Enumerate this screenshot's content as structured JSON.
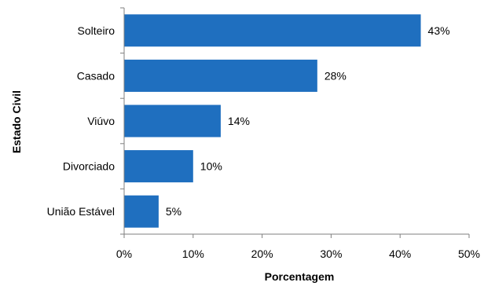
{
  "chart_data": {
    "type": "bar",
    "orientation": "horizontal",
    "categories": [
      "Solteiro",
      "Casado",
      "Viúvo",
      "Divorciado",
      "União Estável"
    ],
    "values": [
      43,
      28,
      14,
      10,
      5
    ],
    "value_labels": [
      "43%",
      "28%",
      "14%",
      "10%",
      "5%"
    ],
    "title": "",
    "xlabel": "Porcentagem",
    "ylabel": "Estado Civil",
    "xlim": [
      0,
      50
    ],
    "x_ticks": [
      0,
      10,
      20,
      30,
      40,
      50
    ],
    "x_tick_labels": [
      "0%",
      "10%",
      "20%",
      "30%",
      "40%",
      "50%"
    ],
    "grid": false,
    "legend": "none",
    "colors": {
      "bar": "#1f6fbf",
      "axis": "#7f7f7f",
      "text": "#000000"
    }
  }
}
